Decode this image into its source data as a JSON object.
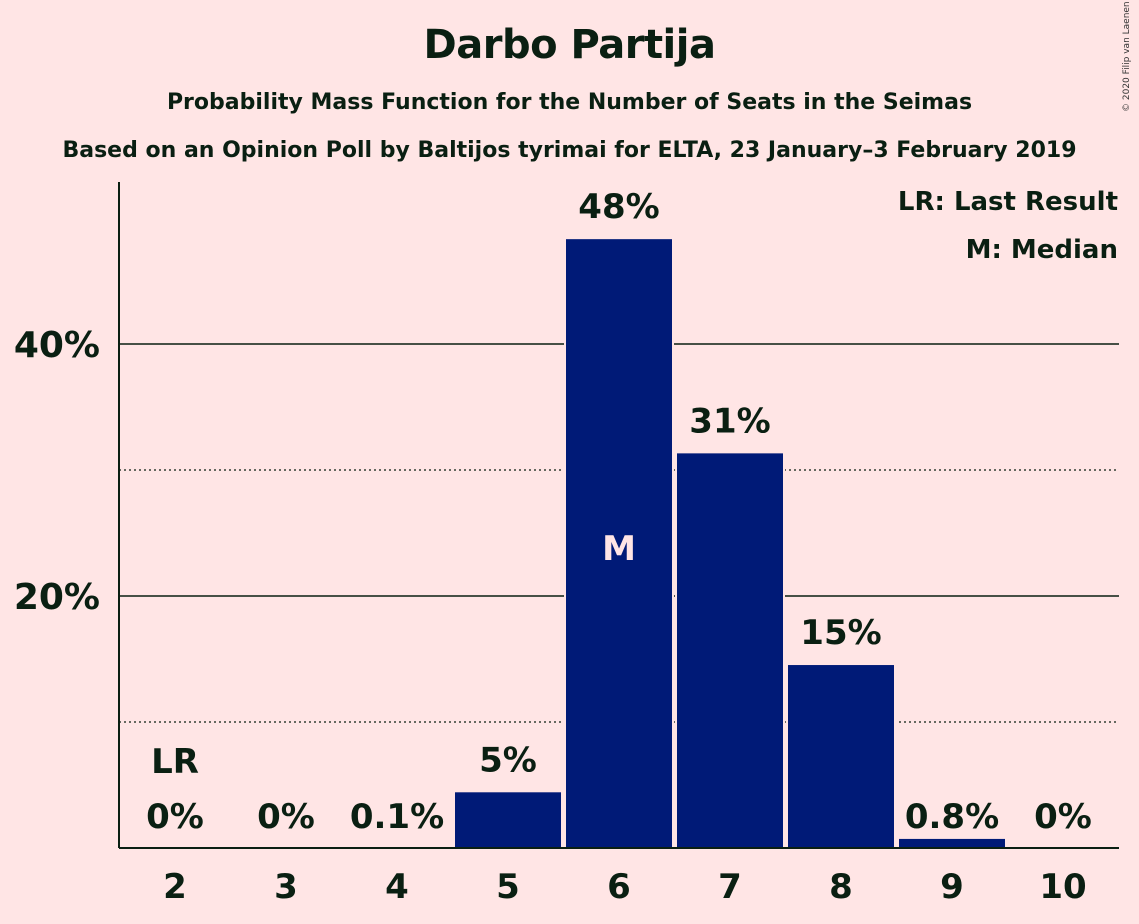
{
  "title": "Darbo Partija",
  "subtitle": "Probability Mass Function for the Number of Seats in the Seimas",
  "subtitle2": "Based on an Opinion Poll by Baltijos tyrimai for ELTA, 23 January–3 February 2019",
  "copyright": "© 2020 Filip van Laenen",
  "colors": {
    "background": "#FFE5E5",
    "bar": "#001A77",
    "text": "#0A1F12"
  },
  "chart_data": {
    "type": "bar",
    "categories": [
      "2",
      "3",
      "4",
      "5",
      "6",
      "7",
      "8",
      "9",
      "10"
    ],
    "values": [
      0,
      0,
      0.1,
      4.5,
      48.4,
      31.4,
      14.6,
      0.8,
      0
    ],
    "data_labels": [
      "0%",
      "0%",
      "0.1%",
      "5%",
      "48%",
      "31%",
      "15%",
      "0.8%",
      "0%"
    ],
    "ylim": [
      0,
      52.5
    ],
    "yticks": [
      {
        "value": 20,
        "label": "20%"
      },
      {
        "value": 40,
        "label": "40%"
      }
    ],
    "minor_gridlines": [
      10,
      30
    ],
    "last_result": {
      "category": "2",
      "label": "LR"
    },
    "median": {
      "category": "6",
      "label": "M"
    },
    "legend": [
      "LR: Last Result",
      "M: Median"
    ],
    "legend_position": "top-right"
  }
}
